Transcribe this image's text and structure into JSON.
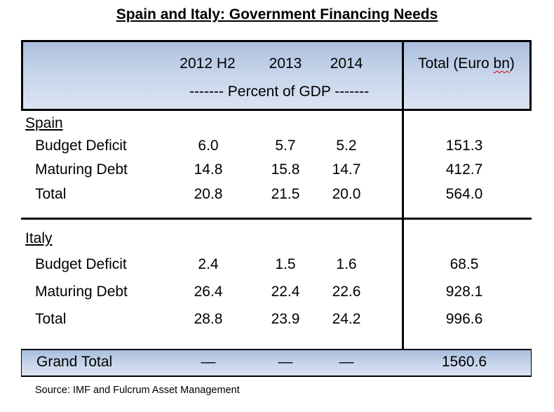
{
  "title": "Spain and Italy: Government Financing Needs",
  "header": {
    "col1": "2012 H2",
    "col2": "2013",
    "col3": "2014",
    "total_prefix": "Total (Euro ",
    "total_unit": "bn",
    "total_suffix": ")",
    "subheader": "------- Percent of GDP -------"
  },
  "spain": {
    "label": "Spain",
    "rows": [
      {
        "label": "Budget Deficit",
        "v": [
          "6.0",
          "5.7",
          "5.2"
        ],
        "total": "151.3"
      },
      {
        "label": "Maturing Debt",
        "v": [
          "14.8",
          "15.8",
          "14.7"
        ],
        "total": "412.7"
      },
      {
        "label": "Total",
        "v": [
          "20.8",
          "21.5",
          "20.0"
        ],
        "total": "564.0"
      }
    ]
  },
  "italy": {
    "label": "Italy",
    "rows": [
      {
        "label": "Budget Deficit",
        "v": [
          "2.4",
          "1.5",
          "1.6"
        ],
        "total": "68.5"
      },
      {
        "label": "Maturing Debt",
        "v": [
          "26.4",
          "22.4",
          "22.6"
        ],
        "total": "928.1"
      },
      {
        "label": "Total",
        "v": [
          "28.8",
          "23.9",
          "24.2"
        ],
        "total": "996.6"
      }
    ]
  },
  "grand_total": {
    "label": "Grand Total",
    "v": [
      "—",
      "—",
      "—"
    ],
    "total": "1560.6"
  },
  "source": "Source: IMF and Fulcrum Asset Management",
  "chart_data": {
    "type": "table",
    "title": "Spain and Italy: Government Financing Needs",
    "columns": [
      "2012 H2",
      "2013",
      "2014",
      "Total (Euro bn)"
    ],
    "column_note": "------- Percent of GDP -------",
    "sections": [
      {
        "name": "Spain",
        "rows": [
          {
            "label": "Budget Deficit",
            "values": [
              6.0,
              5.7,
              5.2,
              151.3
            ]
          },
          {
            "label": "Maturing Debt",
            "values": [
              14.8,
              15.8,
              14.7,
              412.7
            ]
          },
          {
            "label": "Total",
            "values": [
              20.8,
              21.5,
              20.0,
              564.0
            ]
          }
        ]
      },
      {
        "name": "Italy",
        "rows": [
          {
            "label": "Budget Deficit",
            "values": [
              2.4,
              1.5,
              1.6,
              68.5
            ]
          },
          {
            "label": "Maturing Debt",
            "values": [
              26.4,
              22.4,
              22.6,
              928.1
            ]
          },
          {
            "label": "Total",
            "values": [
              28.8,
              23.9,
              24.2,
              996.6
            ]
          }
        ]
      }
    ],
    "grand_total": {
      "label": "Grand Total",
      "values": [
        null,
        null,
        null,
        1560.6
      ]
    }
  }
}
